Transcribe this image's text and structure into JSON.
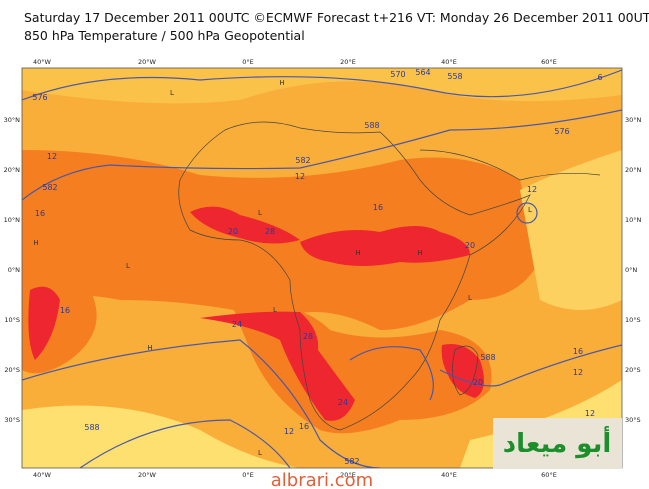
{
  "header": {
    "title_line1": "Saturday 17 December 2011 00UTC ©ECMWF Forecast t+216 VT: Monday 26 December 2011 00UTC",
    "title_line2": "850 hPa Temperature / 500 hPa Geopotential"
  },
  "lon_labels": [
    "40°W",
    "20°W",
    "0°E",
    "20°E",
    "40°E",
    "60°E"
  ],
  "lat_labels": [
    "30°N",
    "20°N",
    "10°N",
    "0°N",
    "10°S",
    "20°S",
    "30°S"
  ],
  "contour_labels": [
    "576",
    "12",
    "582",
    "16",
    "16",
    "12",
    "582",
    "588",
    "16",
    "20",
    "28",
    "20",
    "12",
    "576",
    "24",
    "28",
    "24",
    "20",
    "588",
    "16",
    "12",
    "588",
    "12",
    "16",
    "582",
    "12",
    "570",
    "564",
    "558",
    "6"
  ],
  "pressure_marks": [
    "H",
    "H",
    "L",
    "L",
    "H",
    "L",
    "H",
    "L",
    "L",
    "H",
    "L",
    "L"
  ],
  "logo": "أبو ميعاد",
  "watermark": "albrari.com"
}
